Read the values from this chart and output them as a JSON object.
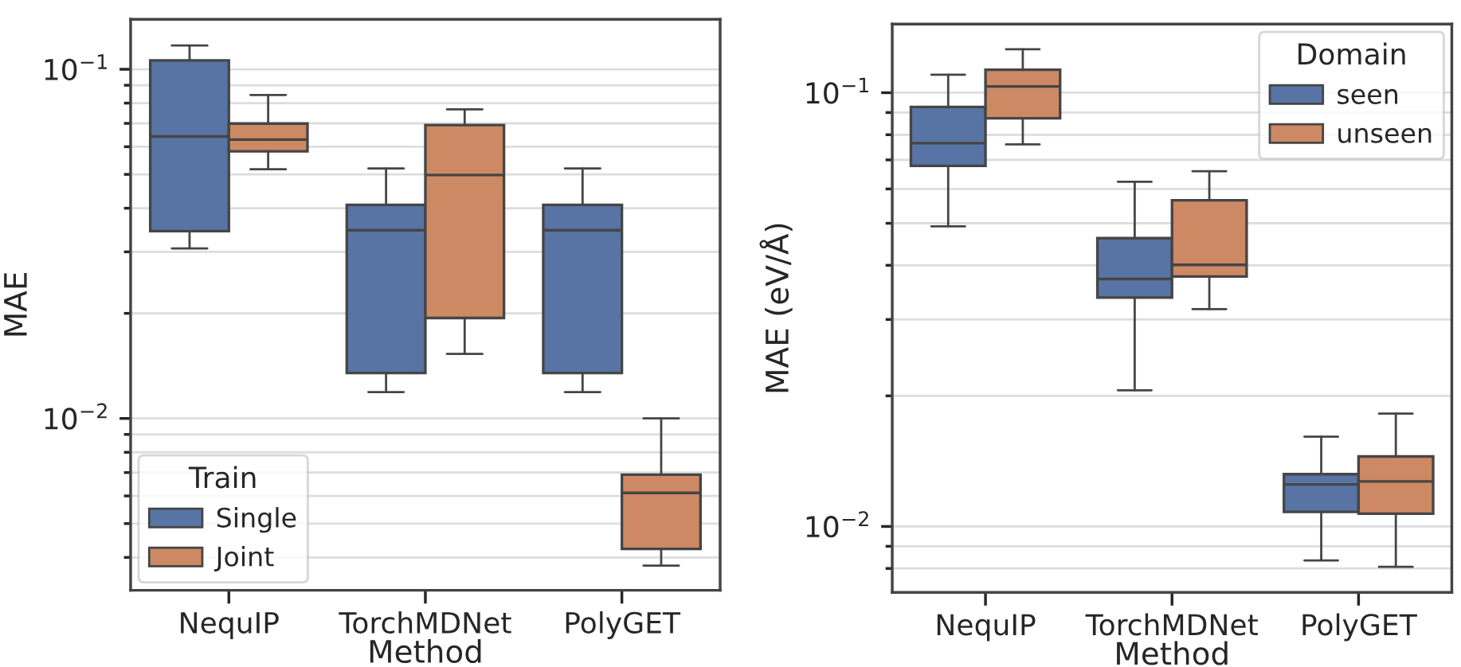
{
  "chart_data": [
    {
      "type": "box",
      "xlabel": "Method",
      "ylabel": "MAE",
      "legend_title": "Train",
      "legend": "bottom left",
      "log": true,
      "grid": "y",
      "ylim": [
        0.00322,
        0.139
      ],
      "yticks": [
        {
          "value": 0.004,
          "label": null
        },
        {
          "value": 0.005,
          "label": null
        },
        {
          "value": 0.006,
          "label": null
        },
        {
          "value": 0.007,
          "label": null
        },
        {
          "value": 0.008,
          "label": null
        },
        {
          "value": 0.009,
          "label": null
        },
        {
          "value": 0.01,
          "label": "10$^{−2}$"
        },
        {
          "value": 0.02,
          "label": null
        },
        {
          "value": 0.03,
          "label": null
        },
        {
          "value": 0.04,
          "label": null
        },
        {
          "value": 0.05,
          "label": null
        },
        {
          "value": 0.06,
          "label": null
        },
        {
          "value": 0.07,
          "label": null
        },
        {
          "value": 0.08,
          "label": null
        },
        {
          "value": 0.09,
          "label": null
        },
        {
          "value": 0.1,
          "label": "10$^{−1}$"
        }
      ],
      "categories": [
        "NequIP",
        "TorchMDNet",
        "PolyGET"
      ],
      "series": [
        {
          "name": "Single",
          "color": "#5874a5",
          "boxes": [
            {
              "low": 0.0307,
              "q1": 0.0344,
              "median": 0.0642,
              "q3": 0.106,
              "high": 0.117
            },
            {
              "low": 0.0119,
              "q1": 0.0135,
              "median": 0.0346,
              "q3": 0.0409,
              "high": 0.052
            },
            {
              "low": 0.0119,
              "q1": 0.0135,
              "median": 0.0346,
              "q3": 0.0409,
              "high": 0.052
            }
          ]
        },
        {
          "name": "Joint",
          "color": "#cd8963",
          "boxes": [
            {
              "low": 0.0517,
              "q1": 0.0582,
              "median": 0.0629,
              "q3": 0.0699,
              "high": 0.0844
            },
            {
              "low": 0.0153,
              "q1": 0.0194,
              "median": 0.0498,
              "q3": 0.0692,
              "high": 0.0768
            },
            {
              "low": 0.00379,
              "q1": 0.00423,
              "median": 0.00612,
              "q3": 0.0069,
              "high": 0.01
            }
          ]
        }
      ]
    },
    {
      "type": "box",
      "xlabel": "Method",
      "ylabel": "MAE (eV/Å)",
      "legend_title": "Domain",
      "legend": "top right",
      "log": true,
      "grid": "y",
      "ylim": [
        0.00705,
        0.144
      ],
      "yticks": [
        {
          "value": 0.008,
          "label": null
        },
        {
          "value": 0.009,
          "label": null
        },
        {
          "value": 0.01,
          "label": "10$^{−2}$"
        },
        {
          "value": 0.02,
          "label": null
        },
        {
          "value": 0.03,
          "label": null
        },
        {
          "value": 0.04,
          "label": null
        },
        {
          "value": 0.05,
          "label": null
        },
        {
          "value": 0.06,
          "label": null
        },
        {
          "value": 0.07,
          "label": null
        },
        {
          "value": 0.08,
          "label": null
        },
        {
          "value": 0.09,
          "label": null
        },
        {
          "value": 0.1,
          "label": "10$^{−1}$"
        }
      ],
      "categories": [
        "NequIP",
        "TorchMDNet",
        "PolyGET"
      ],
      "series": [
        {
          "name": "seen",
          "color": "#5874a5",
          "boxes": [
            {
              "low": 0.0492,
              "q1": 0.0678,
              "median": 0.0765,
              "q3": 0.0927,
              "high": 0.11
            },
            {
              "low": 0.0206,
              "q1": 0.0337,
              "median": 0.0372,
              "q3": 0.0462,
              "high": 0.0623
            },
            {
              "low": 0.00835,
              "q1": 0.0108,
              "median": 0.0125,
              "q3": 0.0132,
              "high": 0.0161
            }
          ]
        },
        {
          "name": "unseen",
          "color": "#cd8963",
          "boxes": [
            {
              "low": 0.076,
              "q1": 0.0873,
              "median": 0.1034,
              "q3": 0.113,
              "high": 0.126
            },
            {
              "low": 0.0317,
              "q1": 0.0377,
              "median": 0.0401,
              "q3": 0.0565,
              "high": 0.0659
            },
            {
              "low": 0.00807,
              "q1": 0.0107,
              "median": 0.0127,
              "q3": 0.0145,
              "high": 0.0182
            }
          ]
        }
      ]
    }
  ]
}
